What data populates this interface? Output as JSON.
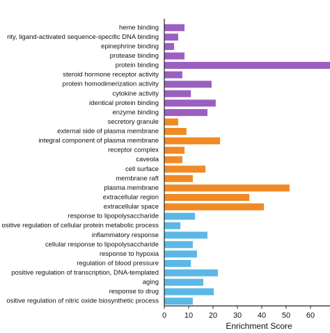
{
  "chart_data": {
    "type": "barh",
    "x_label": "Enrichment Score",
    "categories": [
      "heme binding",
      "rity, ligand-activated sequence-specific DNA binding",
      "epinephrine binding",
      "protease binding",
      "protein binding",
      "steroid hormone receptor activity",
      "protein homodimerization activity",
      "cytokine activity",
      "identical protein binding",
      "enzyme binding",
      "secretory granule",
      "external side of plasma membrane",
      "integral component of plasma membrane",
      "receptor complex",
      "caveola",
      "cell surface",
      "membrane raft",
      "plasma membrane",
      "extracellular region",
      "extracellular space",
      "response to lipopolysaccharide",
      "ositive regulation of cellular protein metabolic process",
      "inflammatory response",
      "cellular response to lipopolysaccharide",
      "response to hypoxia",
      "regulation of blood pressure",
      "positive regulation of transcription, DNA-templated",
      "aging",
      "response to drug",
      "ositive regulation of nitric oxide biosynthetic process"
    ],
    "values": [
      8.3,
      5.7,
      4,
      8.3,
      68,
      7.4,
      19.4,
      10.9,
      21.1,
      17.7,
      5.7,
      9.1,
      22.9,
      8.3,
      7.4,
      16.9,
      11.7,
      51.4,
      34.9,
      40.9,
      12.6,
      6.6,
      17.7,
      11.7,
      13.4,
      10.9,
      22,
      16,
      20.3,
      11.7
    ],
    "colors": [
      "#9b5fc0",
      "#9b5fc0",
      "#9b5fc0",
      "#9b5fc0",
      "#9b5fc0",
      "#9b5fc0",
      "#9b5fc0",
      "#9b5fc0",
      "#9b5fc0",
      "#9b5fc0",
      "#f08a24",
      "#f08a24",
      "#f08a24",
      "#f08a24",
      "#f08a24",
      "#f08a24",
      "#f08a24",
      "#f08a24",
      "#f08a24",
      "#f08a24",
      "#5bb8e6",
      "#5bb8e6",
      "#5bb8e6",
      "#5bb8e6",
      "#5bb8e6",
      "#5bb8e6",
      "#5bb8e6",
      "#5bb8e6",
      "#5bb8e6",
      "#5bb8e6"
    ],
    "xlim": [
      0,
      68
    ],
    "xticks": [
      0,
      10,
      20,
      30,
      40,
      50,
      60
    ]
  }
}
